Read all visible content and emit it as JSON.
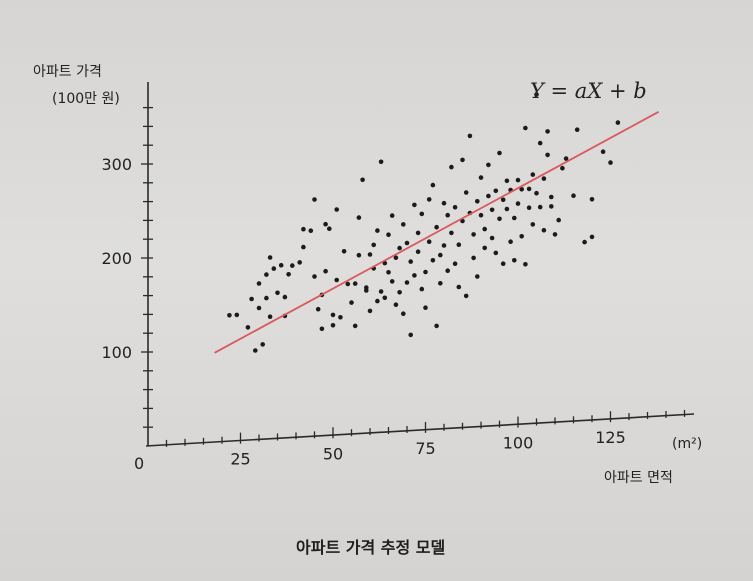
{
  "chart_data": {
    "type": "scatter",
    "title": "",
    "caption": "아파트 가격 추정 모델",
    "equation": "Y = aX + b",
    "ylabel": "아파트 가격",
    "yunit": "(100만 원)",
    "xlabel": "아파트 면적",
    "xunit": "(m²)",
    "origin_label": "0",
    "xlim": [
      0,
      150
    ],
    "ylim": [
      0,
      320
    ],
    "x_ticks": [
      "25",
      "50",
      "75",
      "100",
      "125"
    ],
    "x_tick_values": [
      25,
      50,
      75,
      100,
      125
    ],
    "y_ticks": [
      "100",
      "200",
      "300"
    ],
    "y_tick_values": [
      100,
      200,
      300
    ],
    "grid": false,
    "regression_line": {
      "x": [
        18,
        138
      ],
      "y": [
        95,
        324
      ]
    },
    "series": [
      {
        "points": [
          [
            22,
            134
          ],
          [
            24,
            134
          ],
          [
            27,
            120
          ],
          [
            28,
            150
          ],
          [
            29,
            95
          ],
          [
            30,
            140
          ],
          [
            30,
            166
          ],
          [
            31,
            101
          ],
          [
            32,
            175
          ],
          [
            32,
            150
          ],
          [
            33,
            130
          ],
          [
            33,
            193
          ],
          [
            34,
            181
          ],
          [
            35,
            155
          ],
          [
            36,
            184
          ],
          [
            37,
            130
          ],
          [
            37,
            150
          ],
          [
            38,
            174
          ],
          [
            39,
            183
          ],
          [
            41,
            186
          ],
          [
            42,
            202
          ],
          [
            42,
            221
          ],
          [
            44,
            219
          ],
          [
            45,
            252
          ],
          [
            45,
            170
          ],
          [
            46,
            135
          ],
          [
            47,
            114
          ],
          [
            47,
            150
          ],
          [
            48,
            225
          ],
          [
            48,
            175
          ],
          [
            49,
            220
          ],
          [
            50,
            117
          ],
          [
            50,
            128
          ],
          [
            51,
            240
          ],
          [
            51,
            165
          ],
          [
            52,
            125
          ],
          [
            53,
            195
          ],
          [
            54,
            160
          ],
          [
            55,
            140
          ],
          [
            56,
            160
          ],
          [
            56,
            115
          ],
          [
            57,
            230
          ],
          [
            57,
            190
          ],
          [
            58,
            270
          ],
          [
            59,
            152
          ],
          [
            59,
            155
          ],
          [
            60,
            130
          ],
          [
            60,
            190
          ],
          [
            61,
            175
          ],
          [
            61,
            200
          ],
          [
            62,
            215
          ],
          [
            62,
            140
          ],
          [
            63,
            150
          ],
          [
            63,
            288
          ],
          [
            64,
            180
          ],
          [
            64,
            143
          ],
          [
            65,
            170
          ],
          [
            65,
            210
          ],
          [
            66,
            160
          ],
          [
            66,
            230
          ],
          [
            67,
            185
          ],
          [
            67,
            135
          ],
          [
            68,
            148
          ],
          [
            68,
            195
          ],
          [
            69,
            125
          ],
          [
            69,
            220
          ],
          [
            70,
            158
          ],
          [
            70,
            200
          ],
          [
            71,
            102
          ],
          [
            71,
            180
          ],
          [
            72,
            240
          ],
          [
            72,
            165
          ],
          [
            73,
            190
          ],
          [
            73,
            210
          ],
          [
            74,
            150
          ],
          [
            74,
            230
          ],
          [
            75,
            130
          ],
          [
            75,
            168
          ],
          [
            76,
            200
          ],
          [
            76,
            245
          ],
          [
            77,
            180
          ],
          [
            77,
            260
          ],
          [
            78,
            110
          ],
          [
            78,
            215
          ],
          [
            79,
            185
          ],
          [
            79,
            155
          ],
          [
            80,
            195
          ],
          [
            80,
            240
          ],
          [
            81,
            168
          ],
          [
            81,
            227
          ],
          [
            82,
            278
          ],
          [
            82,
            208
          ],
          [
            83,
            175
          ],
          [
            83,
            235
          ],
          [
            84,
            195
          ],
          [
            84,
            150
          ],
          [
            85,
            285
          ],
          [
            85,
            220
          ],
          [
            86,
            140
          ],
          [
            86,
            250
          ],
          [
            87,
            228
          ],
          [
            87,
            310
          ],
          [
            88,
            205
          ],
          [
            88,
            180
          ],
          [
            89,
            240
          ],
          [
            89,
            160
          ],
          [
            90,
            265
          ],
          [
            90,
            225
          ],
          [
            91,
            210
          ],
          [
            91,
            190
          ],
          [
            92,
            278
          ],
          [
            92,
            245
          ],
          [
            93,
            230
          ],
          [
            93,
            200
          ],
          [
            94,
            250
          ],
          [
            94,
            184
          ],
          [
            95,
            290
          ],
          [
            95,
            220
          ],
          [
            96,
            240
          ],
          [
            96,
            172
          ],
          [
            97,
            260
          ],
          [
            97,
            230
          ],
          [
            98,
            195
          ],
          [
            98,
            250
          ],
          [
            99,
            220
          ],
          [
            99,
            175
          ],
          [
            100,
            260
          ],
          [
            100,
            235
          ],
          [
            101,
            200
          ],
          [
            101,
            250
          ],
          [
            102,
            170
          ],
          [
            102,
            315
          ],
          [
            103,
            230
          ],
          [
            103,
            250
          ],
          [
            104,
            265
          ],
          [
            104,
            212
          ],
          [
            105,
            350
          ],
          [
            105,
            245
          ],
          [
            106,
            298
          ],
          [
            106,
            230
          ],
          [
            107,
            260
          ],
          [
            107,
            205
          ],
          [
            108,
            285
          ],
          [
            108,
            310
          ],
          [
            109,
            240
          ],
          [
            109,
            230
          ],
          [
            110,
            200
          ],
          [
            111,
            215
          ],
          [
            112,
            270
          ],
          [
            113,
            280
          ],
          [
            115,
            240
          ],
          [
            116,
            310
          ],
          [
            118,
            190
          ],
          [
            120,
            235
          ],
          [
            120,
            195
          ],
          [
            123,
            285
          ],
          [
            125,
            273
          ],
          [
            127,
            315
          ]
        ]
      }
    ]
  }
}
